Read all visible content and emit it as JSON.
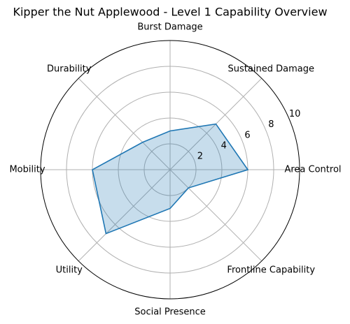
{
  "chart_data": {
    "type": "radar",
    "title": "Kipper the Nut Applewood - Level 1 Capability Overview",
    "categories": [
      "Area Control",
      "Sustained Damage",
      "Burst Damage",
      "Durability",
      "Mobility",
      "Utility",
      "Social Presence",
      "Frontline Capability"
    ],
    "values": [
      6,
      5,
      3,
      3,
      6,
      7,
      3,
      2
    ],
    "color": "#1f77b4",
    "rlim": [
      0,
      10
    ],
    "rticks": [
      2,
      4,
      6,
      8,
      10
    ],
    "grid": true
  }
}
